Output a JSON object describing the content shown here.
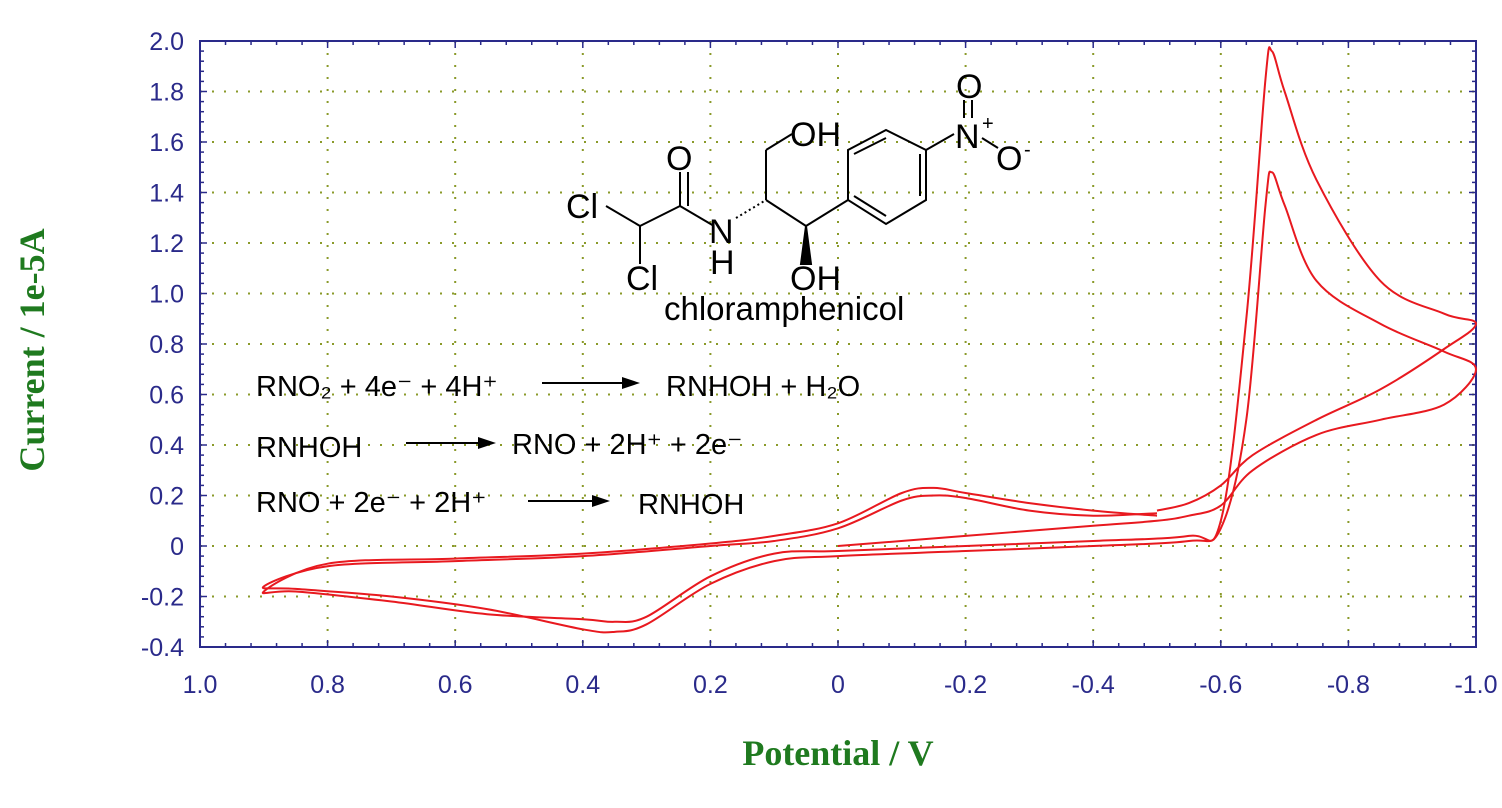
{
  "chart_data": {
    "type": "line",
    "xlabel": "Potential / V",
    "ylabel": "Current / 1e-5A",
    "xlim": [
      1.0,
      -1.0
    ],
    "ylim": [
      -0.4,
      2.0
    ],
    "x_reversed": true,
    "x_ticks": [
      "1.0",
      "0.8",
      "0.6",
      "0.4",
      "0.2",
      "0",
      "-0.2",
      "-0.4",
      "-0.6",
      "-0.8",
      "-1.0"
    ],
    "y_ticks": [
      "2.0",
      "1.8",
      "1.6",
      "1.4",
      "1.2",
      "1.0",
      "0.8",
      "0.6",
      "0.4",
      "0.2",
      "0",
      "-0.2",
      "-0.4"
    ],
    "grid": true,
    "colors": {
      "series": "#e8191f",
      "axis": "#2a2a8a",
      "grid": "#8a9a2a",
      "title": "#1f7a1f"
    },
    "series": [
      {
        "points": [
          [
            -0.5,
            0.13
          ],
          [
            -0.4,
            0.12
          ],
          [
            -0.3,
            0.14
          ],
          [
            -0.2,
            0.19
          ],
          [
            -0.15,
            0.2
          ],
          [
            -0.1,
            0.18
          ],
          [
            0.0,
            0.07
          ],
          [
            0.1,
            0.02
          ],
          [
            0.2,
            0.0
          ],
          [
            0.4,
            -0.04
          ],
          [
            0.6,
            -0.06
          ],
          [
            0.8,
            -0.08
          ],
          [
            0.9,
            -0.16
          ],
          [
            0.85,
            -0.17
          ],
          [
            0.7,
            -0.2
          ],
          [
            0.55,
            -0.25
          ],
          [
            0.4,
            -0.33
          ],
          [
            0.35,
            -0.34
          ],
          [
            0.3,
            -0.31
          ],
          [
            0.2,
            -0.15
          ],
          [
            0.1,
            -0.06
          ],
          [
            0.0,
            -0.04
          ],
          [
            -0.2,
            -0.02
          ],
          [
            -0.4,
            0.0
          ],
          [
            -0.55,
            0.02
          ],
          [
            -0.6,
            0.07
          ],
          [
            -0.64,
            0.5
          ],
          [
            -0.67,
            1.35
          ],
          [
            -0.68,
            1.48
          ],
          [
            -0.7,
            1.35
          ],
          [
            -0.75,
            1.05
          ],
          [
            -0.85,
            0.88
          ],
          [
            -0.95,
            0.77
          ],
          [
            -1.0,
            0.7
          ],
          [
            -0.95,
            0.56
          ],
          [
            -0.85,
            0.5
          ],
          [
            -0.75,
            0.44
          ],
          [
            -0.65,
            0.3
          ],
          [
            -0.6,
            0.16
          ],
          [
            -0.55,
            0.12
          ],
          [
            -0.5,
            0.1
          ],
          [
            -0.4,
            0.08
          ],
          [
            -0.2,
            0.04
          ],
          [
            0.0,
            0.0
          ]
        ]
      },
      {
        "points": [
          [
            -0.5,
            0.12
          ],
          [
            -0.4,
            0.14
          ],
          [
            -0.3,
            0.17
          ],
          [
            -0.2,
            0.21
          ],
          [
            -0.15,
            0.23
          ],
          [
            -0.1,
            0.21
          ],
          [
            0.0,
            0.09
          ],
          [
            0.1,
            0.04
          ],
          [
            0.2,
            0.01
          ],
          [
            0.4,
            -0.03
          ],
          [
            0.6,
            -0.05
          ],
          [
            0.8,
            -0.07
          ],
          [
            0.9,
            -0.18
          ],
          [
            0.85,
            -0.18
          ],
          [
            0.7,
            -0.22
          ],
          [
            0.55,
            -0.27
          ],
          [
            0.4,
            -0.29
          ],
          [
            0.35,
            -0.3
          ],
          [
            0.3,
            -0.28
          ],
          [
            0.2,
            -0.12
          ],
          [
            0.1,
            -0.03
          ],
          [
            0.0,
            -0.02
          ],
          [
            -0.2,
            0.0
          ],
          [
            -0.4,
            0.02
          ],
          [
            -0.55,
            0.04
          ],
          [
            -0.6,
            0.1
          ],
          [
            -0.64,
            0.9
          ],
          [
            -0.67,
            1.85
          ],
          [
            -0.68,
            1.96
          ],
          [
            -0.7,
            1.8
          ],
          [
            -0.75,
            1.45
          ],
          [
            -0.85,
            1.05
          ],
          [
            -0.95,
            0.92
          ],
          [
            -1.0,
            0.88
          ],
          [
            -0.95,
            0.78
          ],
          [
            -0.85,
            0.62
          ],
          [
            -0.75,
            0.5
          ],
          [
            -0.65,
            0.36
          ],
          [
            -0.6,
            0.24
          ],
          [
            -0.55,
            0.17
          ],
          [
            -0.5,
            0.14
          ]
        ]
      }
    ],
    "annotations": {
      "molecule_name": "chloramphenicol",
      "reaction1_left": "RNO₂ + 4e⁻ + 4H⁺",
      "reaction1_right": "RNHOH + H₂O",
      "reaction2_left": "RNHOH",
      "reaction2_right": "RNO + 2H⁺ + 2e⁻",
      "reaction3_left": "RNO + 2e⁻ + 2H⁺",
      "reaction3_right": "RNHOH"
    },
    "molecule_labels": {
      "cl1": "Cl",
      "cl2": "Cl",
      "o_carbonyl": "O",
      "n": "N",
      "h": "H",
      "oh_top": "OH",
      "oh_bottom": "OH",
      "n_nitro": "N",
      "n_plus": "+",
      "o_nitro_top": "O",
      "o_nitro_right": "O",
      "o_minus": "-"
    }
  }
}
